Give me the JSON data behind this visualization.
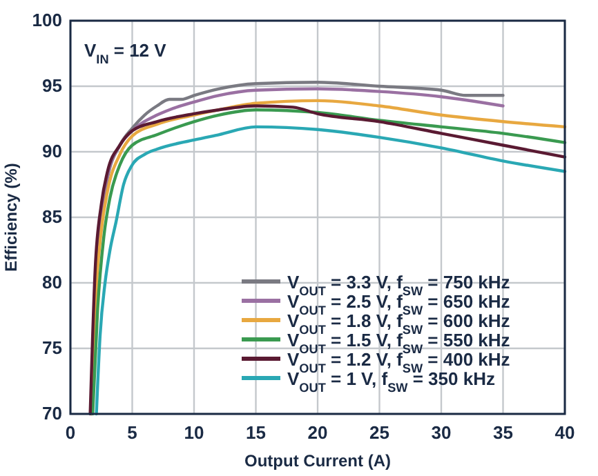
{
  "chart_data": {
    "type": "line",
    "xlabel": "Output Current (A)",
    "ylabel": "Efficiency (%)",
    "annotations": [
      "V$_{IN}$ = 12 V"
    ],
    "xlim": [
      0,
      40
    ],
    "ylim": [
      70,
      100
    ],
    "xticks": [
      0,
      5,
      10,
      15,
      20,
      25,
      30,
      35,
      40
    ],
    "yticks": [
      70,
      75,
      80,
      85,
      90,
      95,
      100
    ],
    "grid": true,
    "legend": "bottom right",
    "line_style": "solid",
    "marker": "none",
    "series": [
      {
        "name": "V$_{OUT}$ = 3.3 V, f$_{SW}$ = 750 kHz",
        "color": "#7a7a82",
        "x": [
          1.7,
          2,
          2.5,
          3,
          4,
          5,
          6,
          7,
          8,
          9,
          10,
          12,
          15,
          20,
          25,
          30,
          32,
          35
        ],
        "values": [
          70,
          80,
          85,
          88,
          90.5,
          91.8,
          92.8,
          93.5,
          94,
          94,
          94.3,
          94.8,
          95.2,
          95.3,
          95,
          94.7,
          94.3,
          94.3
        ]
      },
      {
        "name": "V$_{OUT}$ = 2.5 V, f$_{SW}$ = 650 kHz",
        "color": "#9a70a2",
        "x": [
          1.7,
          2,
          2.5,
          3,
          4,
          5,
          7,
          8,
          10,
          12,
          15,
          20,
          25,
          30,
          35
        ],
        "values": [
          70,
          80,
          85.5,
          88.2,
          90.5,
          91.6,
          92.8,
          93.2,
          93.8,
          94.3,
          94.7,
          94.8,
          94.6,
          94.2,
          93.5
        ]
      },
      {
        "name": "V$_{OUT}$ = 1.8 V, f$_{SW}$ = 600 kHz",
        "color": "#e8a840",
        "x": [
          1.7,
          2,
          2.5,
          3,
          4,
          5,
          7,
          10,
          12,
          15,
          20,
          25,
          30,
          35,
          40
        ],
        "values": [
          70,
          78,
          84,
          87,
          89.8,
          91.2,
          92.1,
          92.8,
          93.2,
          93.7,
          93.9,
          93.5,
          92.8,
          92.3,
          91.9
        ]
      },
      {
        "name": "V$_{OUT}$ = 1.5 V, f$_{SW}$ = 550 kHz",
        "color": "#3a9a50",
        "x": [
          1.8,
          2.2,
          2.7,
          3.2,
          4,
          5,
          7,
          10,
          12,
          15,
          20,
          25,
          30,
          35,
          40
        ],
        "values": [
          70,
          78,
          83.5,
          86.5,
          89,
          90.5,
          91.3,
          92.3,
          92.8,
          93.2,
          93,
          92.4,
          91.9,
          91.4,
          90.7
        ]
      },
      {
        "name": "V$_{OUT}$ = 1.2 V, f$_{SW}$ = 400 kHz",
        "color": "#5a1a32",
        "x": [
          1.6,
          2,
          2.5,
          3,
          4,
          5,
          7,
          10,
          12,
          15,
          18,
          20,
          25,
          30,
          35,
          40
        ],
        "values": [
          70,
          81,
          86,
          88.5,
          90.5,
          91.6,
          92.3,
          92.9,
          93.2,
          93.5,
          93.4,
          92.9,
          92.3,
          91.4,
          90.5,
          89.6
        ]
      },
      {
        "name": "V$_{OUT}$ = 1 V, f$_{SW}$ = 350 kHz",
        "color": "#2aa8b4",
        "x": [
          2.1,
          2.4,
          2.8,
          3.2,
          3.7,
          4.3,
          5,
          6,
          7,
          10,
          12,
          15,
          20,
          25,
          30,
          35,
          40
        ],
        "values": [
          70,
          76,
          80,
          82.5,
          84.7,
          87.5,
          89,
          89.8,
          90.2,
          90.9,
          91.3,
          91.9,
          91.7,
          91.1,
          90.3,
          89.3,
          88.5
        ]
      }
    ]
  }
}
